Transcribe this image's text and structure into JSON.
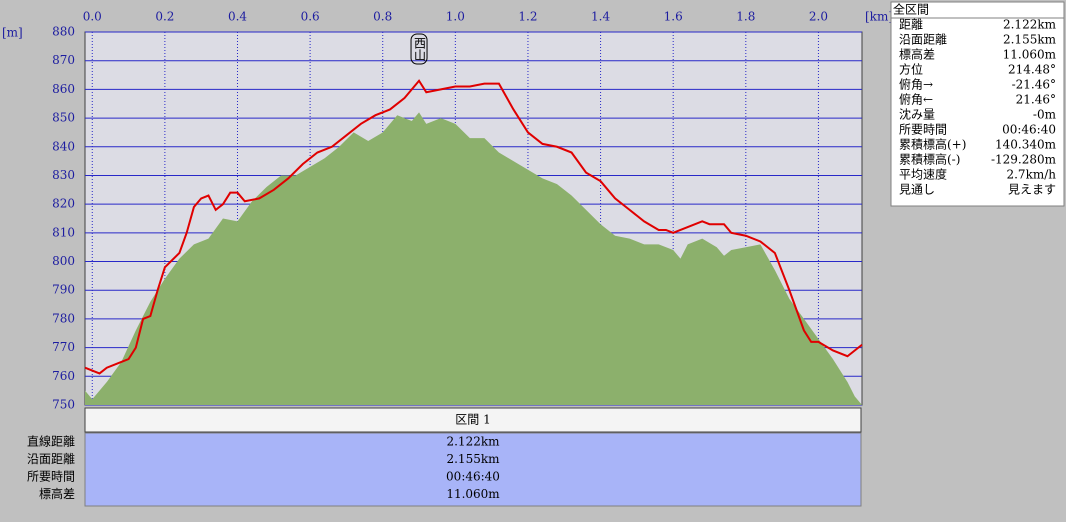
{
  "chart_data": {
    "type": "profile",
    "xlabel": "[km]",
    "ylabel": "[m]",
    "xlim": [
      -0.02,
      2.12
    ],
    "ylim": [
      750,
      880
    ],
    "xticks": [
      {
        "value": 0,
        "label": "0.0"
      },
      0.2,
      0.4,
      0.6,
      0.8,
      {
        "value": 1,
        "label": "1.0"
      },
      1.2,
      1.4,
      1.6,
      1.8,
      {
        "value": 2,
        "label": "2.0"
      }
    ],
    "yticks": [
      750,
      760,
      770,
      780,
      790,
      800,
      810,
      820,
      830,
      840,
      850,
      860,
      870,
      880
    ],
    "grid": true,
    "annotations": [
      {
        "text": "西山",
        "x": 0.9
      }
    ],
    "series": [
      {
        "kind": "area",
        "color": "#8cb06c",
        "x": [
          -0.02,
          0.0,
          0.04,
          0.08,
          0.12,
          0.16,
          0.2,
          0.24,
          0.28,
          0.32,
          0.36,
          0.4,
          0.44,
          0.48,
          0.52,
          0.56,
          0.6,
          0.64,
          0.68,
          0.72,
          0.76,
          0.8,
          0.84,
          0.88,
          0.9,
          0.92,
          0.96,
          1.0,
          1.04,
          1.08,
          1.12,
          1.16,
          1.2,
          1.24,
          1.28,
          1.32,
          1.36,
          1.4,
          1.44,
          1.48,
          1.52,
          1.56,
          1.6,
          1.62,
          1.64,
          1.68,
          1.72,
          1.74,
          1.76,
          1.8,
          1.84,
          1.88,
          1.92,
          1.96,
          2.0,
          2.04,
          2.08,
          2.1,
          2.12
        ],
        "values": [
          755,
          752,
          758,
          765,
          776,
          786,
          794,
          801,
          806,
          808,
          815,
          814,
          821,
          826,
          830,
          830,
          833,
          836,
          840,
          845,
          842,
          845,
          851,
          849,
          852,
          848,
          850,
          848,
          843,
          843,
          838,
          835,
          832,
          829,
          827,
          823,
          818,
          813,
          809,
          808,
          806,
          806,
          804,
          801,
          806,
          808,
          805,
          802,
          804,
          805,
          806,
          797,
          787,
          780,
          773,
          766,
          758,
          753,
          750
        ]
      },
      {
        "kind": "line",
        "color": "#e00000",
        "x": [
          -0.02,
          0.0,
          0.02,
          0.04,
          0.08,
          0.1,
          0.12,
          0.14,
          0.16,
          0.18,
          0.2,
          0.24,
          0.26,
          0.28,
          0.3,
          0.32,
          0.34,
          0.36,
          0.38,
          0.4,
          0.42,
          0.46,
          0.5,
          0.54,
          0.58,
          0.62,
          0.66,
          0.7,
          0.74,
          0.78,
          0.82,
          0.86,
          0.9,
          0.92,
          0.96,
          1.0,
          1.04,
          1.08,
          1.12,
          1.16,
          1.2,
          1.24,
          1.28,
          1.32,
          1.36,
          1.4,
          1.44,
          1.48,
          1.52,
          1.56,
          1.58,
          1.6,
          1.64,
          1.68,
          1.7,
          1.74,
          1.76,
          1.8,
          1.84,
          1.88,
          1.92,
          1.96,
          1.98,
          2.0,
          2.04,
          2.08,
          2.12
        ],
        "values": [
          763,
          762,
          761,
          763,
          765,
          766,
          770,
          780,
          781,
          790,
          798,
          803,
          810,
          819,
          822,
          823,
          818,
          820,
          824,
          824,
          821,
          822,
          825,
          829,
          834,
          838,
          840,
          844,
          848,
          851,
          853,
          857,
          863,
          859,
          860,
          861,
          861,
          862,
          862,
          853,
          845,
          841,
          840,
          838,
          831,
          828,
          822,
          818,
          814,
          811,
          811,
          810,
          812,
          814,
          813,
          813,
          810,
          809,
          807,
          803,
          790,
          776,
          772,
          772,
          769,
          767,
          771
        ]
      }
    ]
  },
  "panel": {
    "title": "全区間",
    "rows": [
      [
        "距離",
        "2.122km"
      ],
      [
        "沿面距離",
        "2.155km"
      ],
      [
        "標高差",
        "11.060m"
      ],
      [
        "方位",
        "214.48°"
      ],
      [
        "俯角→",
        "-21.46°"
      ],
      [
        "俯角←",
        "21.46°"
      ],
      [
        "沈み量",
        "-0m"
      ],
      [
        "所要時間",
        "00:46:40"
      ],
      [
        "累積標高(+)",
        "140.340m"
      ],
      [
        "累積標高(-)",
        "-129.280m"
      ],
      [
        "平均速度",
        "2.7km/h"
      ],
      [
        "見通し",
        "見えます"
      ]
    ]
  },
  "section": {
    "header": "区間 1",
    "rows": [
      [
        "直線距離",
        "2.122km"
      ],
      [
        "沿面距離",
        "2.155km"
      ],
      [
        "所要時間",
        "00:46:40"
      ],
      [
        "標高差",
        "11.060m"
      ]
    ]
  }
}
